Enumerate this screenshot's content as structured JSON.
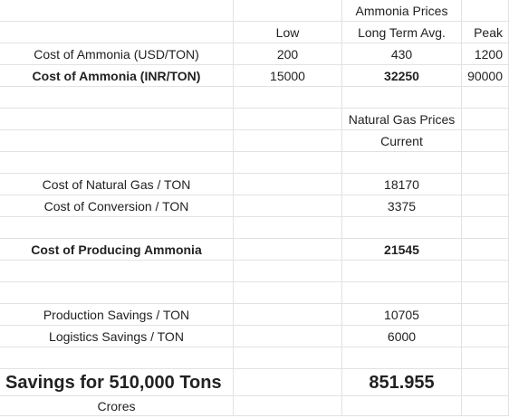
{
  "header": {
    "ammonia_prices": "Ammonia Prices",
    "low": "Low",
    "long_term_avg": "Long Term Avg.",
    "peak": "Peak"
  },
  "rows": {
    "usd_label": "Cost of Ammonia (USD/TON)",
    "usd_low": "200",
    "usd_avg": "430",
    "usd_peak": "1200",
    "inr_label": "Cost of Ammonia (INR/TON)",
    "inr_low": "15000",
    "inr_avg": "32250",
    "inr_peak": "90000",
    "ng_prices": "Natural Gas Prices",
    "current": "Current",
    "ng_cost_label": "Cost of Natural Gas / TON",
    "ng_cost_value": "18170",
    "conv_label": "Cost of Conversion / TON",
    "conv_value": "3375",
    "prod_label": "Cost of Producing Ammonia",
    "prod_value": "21545",
    "prod_savings_label": "Production Savings / TON",
    "prod_savings_value": "10705",
    "log_savings_label": "Logistics Savings / TON",
    "log_savings_value": "6000",
    "total_label": "Savings for 510,000 Tons",
    "total_value": "851.955",
    "crores": "Crores"
  }
}
